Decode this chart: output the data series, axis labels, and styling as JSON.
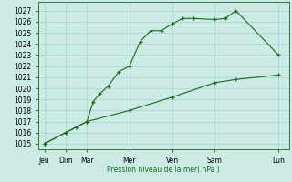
{
  "background_color": "#cceae6",
  "grid_color": "#aad4cc",
  "line_color": "#1a6b1a",
  "marker_color": "#1a6b1a",
  "xlabel": "Pression niveau de la mer( hPa )",
  "ylim": [
    1014.5,
    1027.8
  ],
  "yticks": [
    1015,
    1016,
    1017,
    1018,
    1019,
    1020,
    1021,
    1022,
    1023,
    1024,
    1025,
    1026,
    1027
  ],
  "x_day_labels": [
    "Jeu",
    "Dim",
    "Mar",
    "Mer",
    "Ven",
    "Sam",
    "Lun"
  ],
  "x_day_positions": [
    0,
    1,
    2,
    4,
    6,
    8,
    11
  ],
  "series1_x": [
    0,
    1,
    1.5,
    2,
    2.3,
    2.6,
    3,
    3.5,
    4,
    4.5,
    5,
    5.5,
    6,
    6.5,
    7,
    8,
    8.5,
    9,
    11
  ],
  "series1_y": [
    1015.0,
    1016.0,
    1016.5,
    1017.0,
    1018.8,
    1019.5,
    1020.2,
    1021.5,
    1022.0,
    1024.2,
    1025.2,
    1025.2,
    1025.8,
    1026.3,
    1026.3,
    1026.2,
    1026.3,
    1027.0,
    1023.0
  ],
  "series2_x": [
    0,
    1,
    1.5,
    2,
    4,
    6,
    8,
    9,
    11
  ],
  "series2_y": [
    1015.0,
    1016.0,
    1016.5,
    1017.0,
    1018.0,
    1019.2,
    1020.5,
    1020.8,
    1021.2
  ],
  "xlim": [
    -0.3,
    11.5
  ]
}
